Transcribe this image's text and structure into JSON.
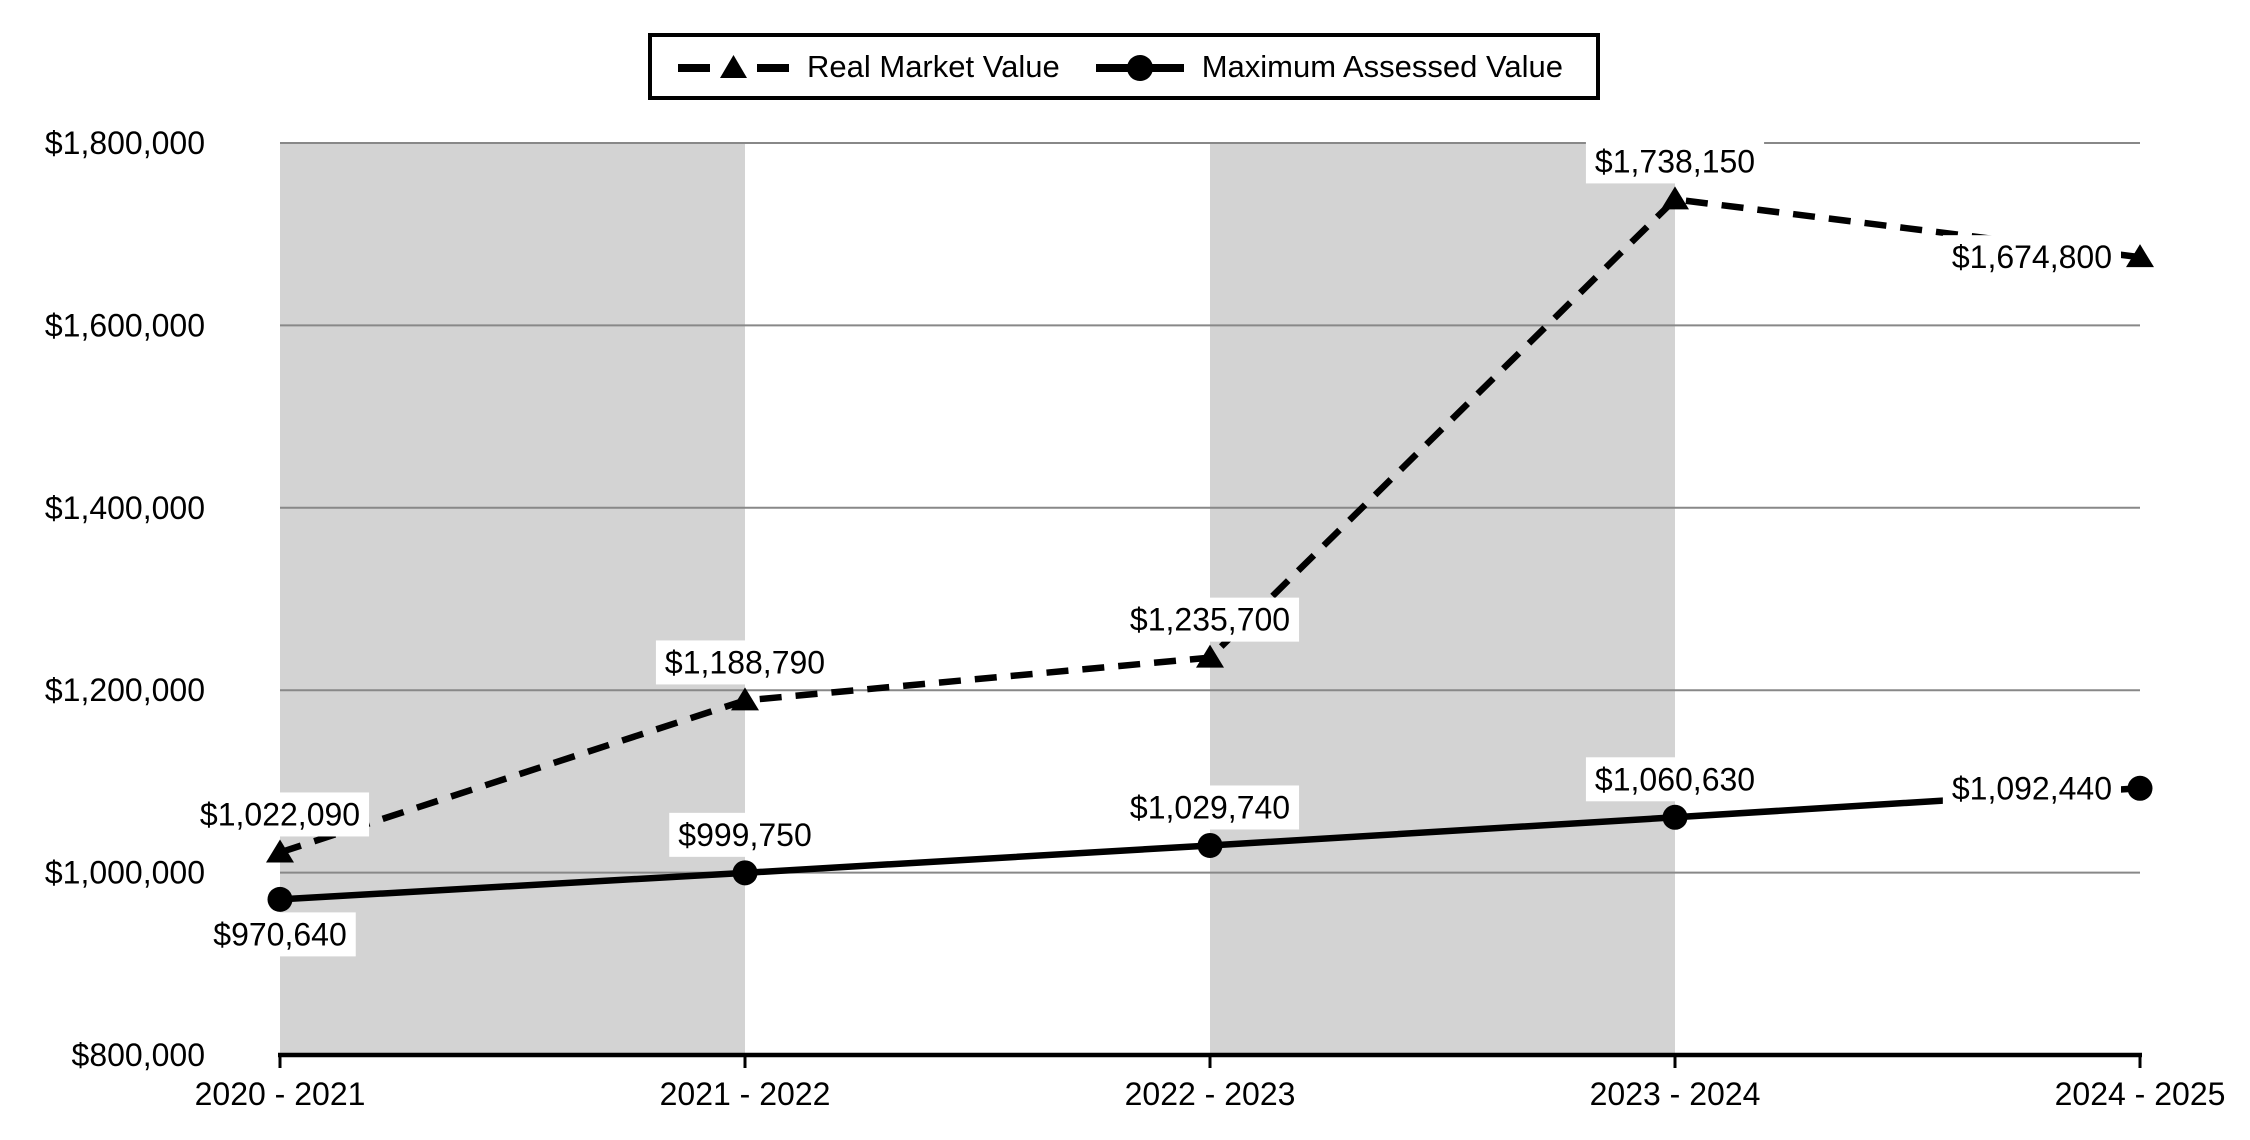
{
  "chart_data": {
    "type": "line",
    "title": "",
    "categories": [
      "2020 - 2021",
      "2021 - 2022",
      "2022 - 2023",
      "2023 - 2024",
      "2024 - 2025"
    ],
    "series": [
      {
        "name": "Real Market Value",
        "values": [
          1022090,
          1188790,
          1235700,
          1738150,
          1674800
        ],
        "labels": [
          "$1,022,090",
          "$1,188,790",
          "$1,235,700",
          "$1,738,150",
          "$1,674,800"
        ],
        "label_placement": [
          "above",
          "above",
          "above",
          "above",
          "left"
        ],
        "line_style": "dashed",
        "marker": "triangle",
        "color": "#000000"
      },
      {
        "name": "Maximum Assessed Value",
        "values": [
          970640,
          999750,
          1029740,
          1060630,
          1092440
        ],
        "labels": [
          "$970,640",
          "$999,750",
          "$1,029,740",
          "$1,060,630",
          "$1,092,440"
        ],
        "label_placement": [
          "below",
          "above",
          "above",
          "above",
          "left"
        ],
        "line_style": "solid",
        "marker": "circle",
        "color": "#000000"
      }
    ],
    "y_axis": {
      "min": 800000,
      "max": 1800000,
      "step": 200000,
      "tick_labels": [
        "$800,000",
        "$1,000,000",
        "$1,200,000",
        "$1,400,000",
        "$1,600,000",
        "$1,800,000"
      ]
    },
    "x_axis": {
      "tick_labels": [
        "2020 - 2021",
        "2021 - 2022",
        "2022 - 2023",
        "2023 - 2024",
        "2024 - 2025"
      ]
    },
    "grid": true,
    "legend_position": "top",
    "plot_bands": {
      "color": "#d3d3d3",
      "indices": [
        0,
        2
      ]
    },
    "gridline_color": "#888888",
    "axis_color": "#000000",
    "label_background": "#ffffff",
    "text_color": "#000000"
  }
}
